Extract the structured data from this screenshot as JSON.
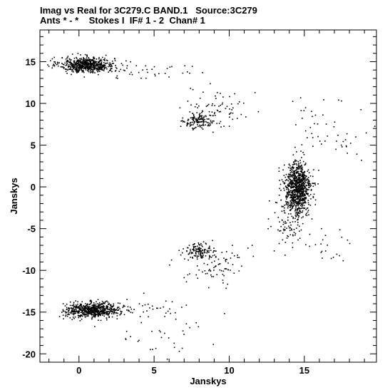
{
  "header": {
    "line1": "Imag vs Real for 3C279.C BAND.1   Source:3C279",
    "line2": "Ants * - *    Stokes I  IF# 1 - 2  Chan# 1"
  },
  "chart_data": {
    "type": "scatter",
    "xlabel": "Janskys",
    "ylabel": "Janskys",
    "xlim": [
      -2.6,
      19.8
    ],
    "ylim": [
      -21.0,
      18.8
    ],
    "xticks": [
      0,
      5,
      10,
      15
    ],
    "xtick_labels": [
      "0",
      "5",
      "10",
      "15"
    ],
    "yticks": [
      15,
      10,
      5,
      0,
      -5,
      -10,
      -15,
      -20
    ],
    "ytick_labels": [
      "15",
      "10",
      "5",
      "0",
      "-5",
      "-10",
      "-15",
      "-20"
    ],
    "grid": false,
    "point_color": "#000000",
    "clusters": [
      {
        "cx": 0.5,
        "cy": 14.7,
        "sx": 0.9,
        "sy": 0.45,
        "n": 650
      },
      {
        "cx": 0.9,
        "cy": -14.7,
        "sx": 0.9,
        "sy": 0.45,
        "n": 650
      },
      {
        "cx": 14.5,
        "cy": -0.2,
        "sx": 0.45,
        "sy": 1.6,
        "n": 900
      },
      {
        "cx": 8.0,
        "cy": 7.9,
        "sx": 0.5,
        "sy": 0.45,
        "n": 130
      },
      {
        "cx": 7.9,
        "cy": -7.6,
        "sx": 0.5,
        "sy": 0.45,
        "n": 130
      },
      {
        "cx": 9.3,
        "cy": 9.5,
        "sx": 1.0,
        "sy": 1.2,
        "n": 80
      },
      {
        "cx": 9.3,
        "cy": -9.4,
        "sx": 1.0,
        "sy": 1.2,
        "n": 80
      },
      {
        "cx": 13.8,
        "cy": -4.5,
        "sx": 0.6,
        "sy": 1.6,
        "n": 70
      },
      {
        "cx": 4.0,
        "cy": 14.0,
        "sx": 1.6,
        "sy": 0.5,
        "n": 40
      },
      {
        "cx": 4.0,
        "cy": -14.6,
        "sx": 1.8,
        "sy": 0.7,
        "n": 45
      },
      {
        "cx": 5.5,
        "cy": -17.5,
        "sx": 1.8,
        "sy": 1.2,
        "n": 30
      },
      {
        "cx": 17.5,
        "cy": 6.5,
        "sx": 1.0,
        "sy": 1.5,
        "n": 25
      },
      {
        "cx": 17.0,
        "cy": -7.0,
        "sx": 0.8,
        "sy": 1.2,
        "n": 20
      },
      {
        "cx": 15.5,
        "cy": 7.0,
        "sx": 1.2,
        "sy": 2.5,
        "n": 25
      }
    ]
  }
}
